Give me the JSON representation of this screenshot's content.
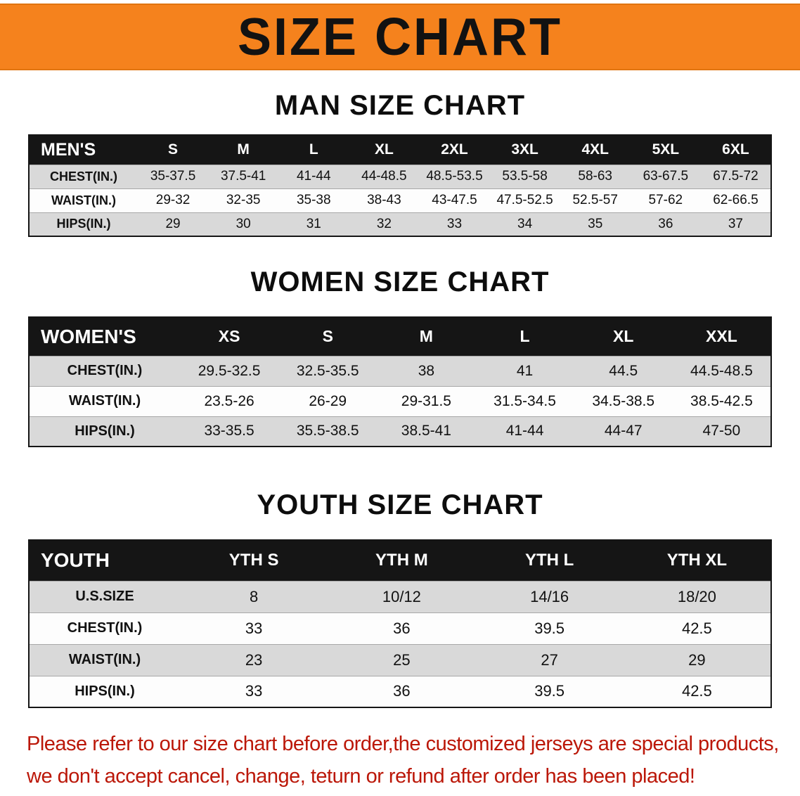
{
  "banner": {
    "title": "SIZE CHART",
    "bg_color": "#F5821D",
    "text_color": "#121212"
  },
  "men": {
    "heading": "MAN SIZE CHART",
    "corner": "MEN'S",
    "cols": [
      "S",
      "M",
      "L",
      "XL",
      "2XL",
      "3XL",
      "4XL",
      "5XL",
      "6XL"
    ],
    "rows": [
      {
        "label": "CHEST(IN.)",
        "values": [
          "35-37.5",
          "37.5-41",
          "41-44",
          "44-48.5",
          "48.5-53.5",
          "53.5-58",
          "58-63",
          "63-67.5",
          "67.5-72"
        ]
      },
      {
        "label": "WAIST(IN.)",
        "values": [
          "29-32",
          "32-35",
          "35-38",
          "38-43",
          "43-47.5",
          "47.5-52.5",
          "52.5-57",
          "57-62",
          "62-66.5"
        ]
      },
      {
        "label": "HIPS(IN.)",
        "values": [
          "29",
          "30",
          "31",
          "32",
          "33",
          "34",
          "35",
          "36",
          "37"
        ]
      }
    ]
  },
  "women": {
    "heading": "WOMEN SIZE CHART",
    "corner": "WOMEN'S",
    "cols": [
      "XS",
      "S",
      "M",
      "L",
      "XL",
      "XXL"
    ],
    "rows": [
      {
        "label": "CHEST(IN.)",
        "values": [
          "29.5-32.5",
          "32.5-35.5",
          "38",
          "41",
          "44.5",
          "44.5-48.5"
        ]
      },
      {
        "label": "WAIST(IN.)",
        "values": [
          "23.5-26",
          "26-29",
          "29-31.5",
          "31.5-34.5",
          "34.5-38.5",
          "38.5-42.5"
        ]
      },
      {
        "label": "HIPS(IN.)",
        "values": [
          "33-35.5",
          "35.5-38.5",
          "38.5-41",
          "41-44",
          "44-47",
          "47-50"
        ]
      }
    ]
  },
  "youth": {
    "heading": "YOUTH SIZE CHART",
    "corner": "YOUTH",
    "cols": [
      "YTH S",
      "YTH M",
      "YTH L",
      "YTH XL"
    ],
    "rows": [
      {
        "label": "U.S.SIZE",
        "values": [
          "8",
          "10/12",
          "14/16",
          "18/20"
        ]
      },
      {
        "label": "CHEST(IN.)",
        "values": [
          "33",
          "36",
          "39.5",
          "42.5"
        ]
      },
      {
        "label": "WAIST(IN.)",
        "values": [
          "23",
          "25",
          "27",
          "29"
        ]
      },
      {
        "label": "HIPS(IN.)",
        "values": [
          "33",
          "36",
          "39.5",
          "42.5"
        ]
      }
    ]
  },
  "footer": {
    "line1": "Please refer to our size chart before order,the customized jerseys are special products,",
    "line2": "we don't accept cancel, change, teturn or refund after order has been placed!",
    "text_color": "#BB1708"
  },
  "colors": {
    "table_header_bg": "#151515",
    "stripe_row_bg": "#D9D9D9",
    "table_border": "#151515"
  }
}
